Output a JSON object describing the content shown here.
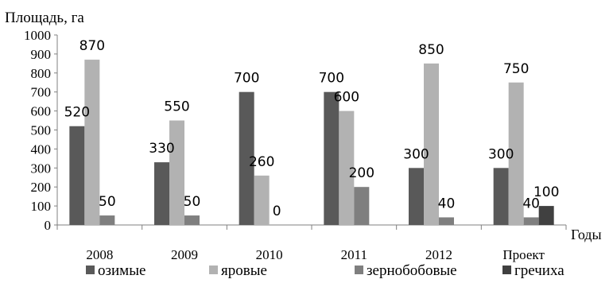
{
  "chart_data": {
    "type": "bar",
    "ylabel": "Площадь, га",
    "xlabel": "Годы",
    "categories": [
      "2008",
      "2009",
      "2010",
      "2011",
      "2012",
      "Проект"
    ],
    "ylim": [
      0,
      1000
    ],
    "yticks": [
      0,
      100,
      200,
      300,
      400,
      500,
      600,
      700,
      800,
      900,
      1000
    ],
    "grid": false,
    "legend": "bottom",
    "series": [
      {
        "name": "озимые",
        "color": "#595959",
        "values": [
          520,
          330,
          700,
          700,
          300,
          300
        ],
        "labels": [
          "520",
          "330",
          "700",
          "700",
          "300",
          "300"
        ]
      },
      {
        "name": "яровые",
        "color": "#b2b2b2",
        "values": [
          870,
          550,
          260,
          600,
          850,
          750
        ],
        "labels": [
          "870",
          "550",
          "260",
          "600",
          "850",
          "750"
        ]
      },
      {
        "name": "зернобобовые",
        "color": "#7f7f7f",
        "values": [
          50,
          50,
          0,
          200,
          40,
          40
        ],
        "labels": [
          "50",
          "50",
          "0",
          "200",
          "40",
          "40"
        ]
      },
      {
        "name": "гречиха",
        "color": "#404040",
        "values": [
          null,
          null,
          null,
          null,
          null,
          100
        ],
        "labels": [
          null,
          null,
          null,
          null,
          null,
          "100"
        ]
      }
    ]
  }
}
